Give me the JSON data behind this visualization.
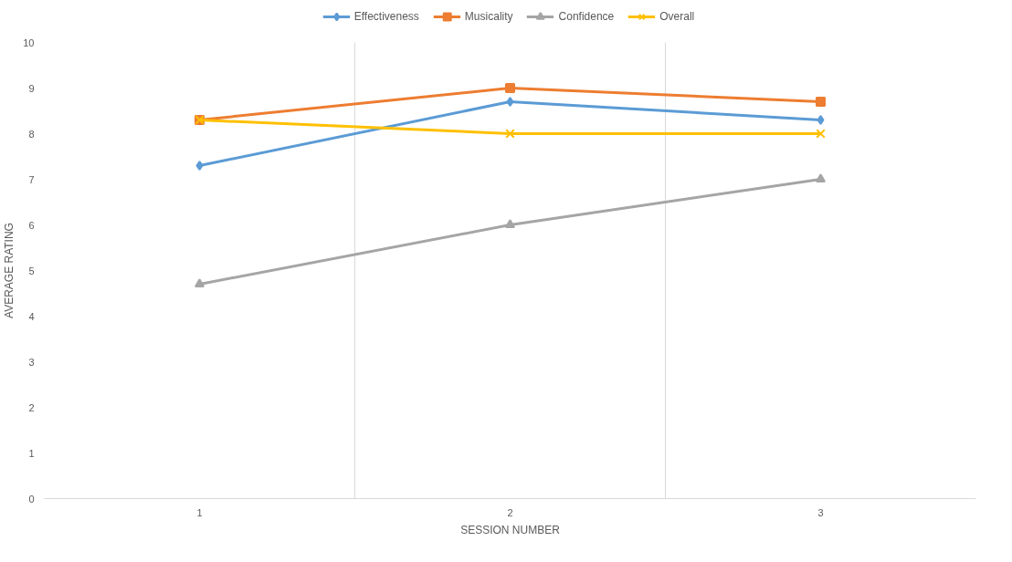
{
  "chart_data": {
    "type": "line",
    "xlabel": "SESSION NUMBER",
    "ylabel": "AVERAGE RATING",
    "categories": [
      "1",
      "2",
      "3"
    ],
    "series": [
      {
        "name": "Effectiveness",
        "color": "#5b9bd5",
        "marker": "diamond",
        "values": [
          7.3,
          8.7,
          8.3
        ]
      },
      {
        "name": "Musicality",
        "color": "#ed7d31",
        "marker": "square",
        "values": [
          8.3,
          9,
          8.7
        ]
      },
      {
        "name": "Confidence",
        "color": "#a5a5a5",
        "marker": "triangle",
        "values": [
          4.7,
          6,
          7
        ]
      },
      {
        "name": "Overall",
        "color": "#ffc000",
        "marker": "cross",
        "values": [
          8.3,
          8,
          8
        ]
      }
    ],
    "ylim": [
      0,
      10
    ],
    "yticks": [
      0,
      1,
      2,
      3,
      4,
      5,
      6,
      7,
      8,
      9,
      10
    ],
    "grid": "x",
    "legend": "top",
    "line_style": "solid"
  }
}
